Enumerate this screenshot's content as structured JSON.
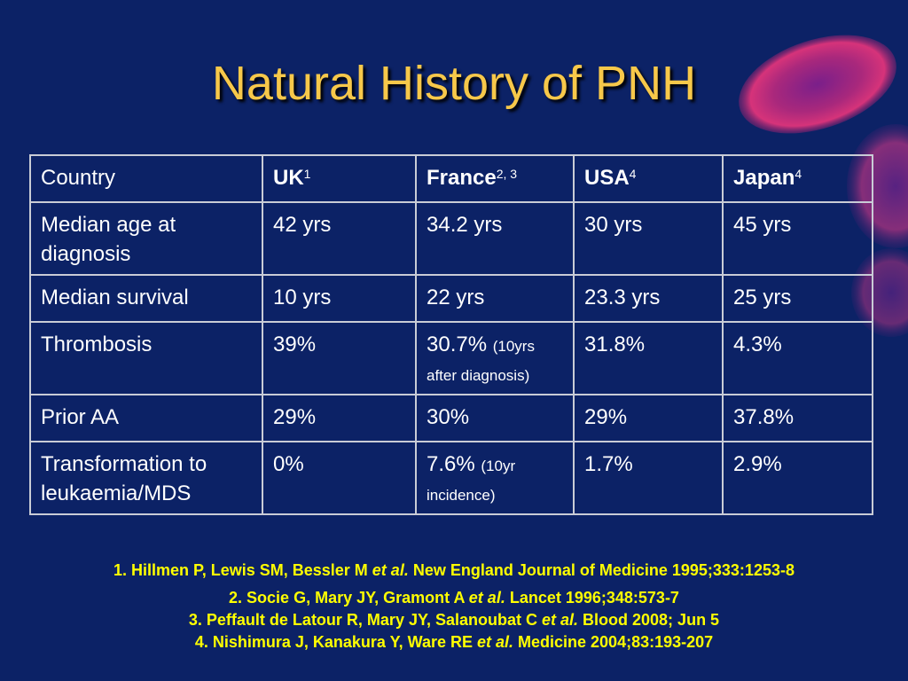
{
  "slide": {
    "title": "Natural History of PNH",
    "colors": {
      "background": "#0c2266",
      "title": "#f7c84a",
      "table_text": "#ffffff",
      "table_border": "#c9ccd6",
      "references": "#ffff00",
      "decor_blob": "#d6337a"
    }
  },
  "table": {
    "header": {
      "label": "Country",
      "columns": [
        {
          "name": "UK",
          "ref": "1"
        },
        {
          "name": "France",
          "ref": "2, 3"
        },
        {
          "name": "USA",
          "ref": "4"
        },
        {
          "name": "Japan",
          "ref": "4"
        }
      ]
    },
    "rows": [
      {
        "label": "Median age at diagnosis",
        "cells": [
          {
            "main": "42 yrs"
          },
          {
            "main": "34.2 yrs"
          },
          {
            "main": "30 yrs"
          },
          {
            "main": "45 yrs"
          }
        ]
      },
      {
        "label": "Median survival",
        "cells": [
          {
            "main": "10 yrs"
          },
          {
            "main": "22 yrs"
          },
          {
            "main": "23.3 yrs"
          },
          {
            "main": "25 yrs"
          }
        ]
      },
      {
        "label": "Thrombosis",
        "cells": [
          {
            "main": "39%"
          },
          {
            "main": "30.7%",
            "note": "(10yrs after diagnosis)"
          },
          {
            "main": "31.8%"
          },
          {
            "main": "4.3%"
          }
        ]
      },
      {
        "label": "Prior AA",
        "cells": [
          {
            "main": "29%"
          },
          {
            "main": "30%"
          },
          {
            "main": "29%"
          },
          {
            "main": "37.8%"
          }
        ]
      },
      {
        "label": "Transformation to leukaemia/MDS",
        "cells": [
          {
            "main": "0%"
          },
          {
            "main": "7.6%",
            "note": "(10yr incidence)"
          },
          {
            "main": "1.7%"
          },
          {
            "main": "2.9%"
          }
        ]
      }
    ]
  },
  "references": [
    {
      "pre": "1. Hillmen P, Lewis SM, Bessler M ",
      "etal": "et al.",
      "post": " New England Journal of Medicine 1995;333:1253-8"
    },
    {
      "pre": "2. Socie G, Mary JY, Gramont A ",
      "etal": "et al.",
      "post": " Lancet 1996;348:573-7"
    },
    {
      "pre": "3. Peffault de Latour R, Mary JY, Salanoubat C ",
      "etal": "et al.",
      "post": " Blood 2008; Jun 5"
    },
    {
      "pre": "4. Nishimura J, Kanakura Y, Ware RE ",
      "etal": "et al.",
      "post": " Medicine 2004;83:193-207"
    }
  ]
}
